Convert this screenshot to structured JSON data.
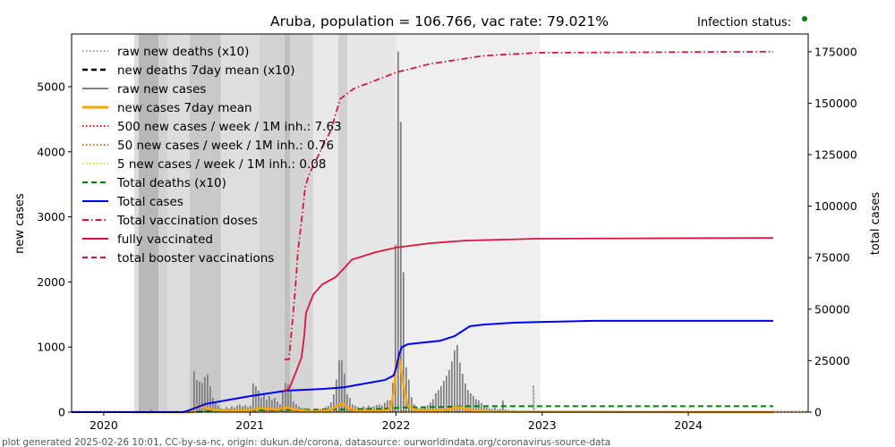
{
  "chart_data": {
    "type": "bar+line",
    "title": "Aruba, population = 106.766, vac rate: 79.021%",
    "infection_status_label": "Infection status:",
    "infection_status_color": "#008000",
    "footer": "plot generated 2025-02-26 10:01, CC-by-sa-nc, origin: dukun.de/corona, datasource: ourworldindata.org/coronavirus-source-data",
    "xlabel": "",
    "ylabel": "new cases",
    "ylabel_right": "total cases",
    "xlim": [
      2019.78,
      2024.82
    ],
    "ylim": [
      0,
      5810
    ],
    "ylim_right": [
      0,
      183600
    ],
    "x_ticks": [
      2020,
      2021,
      2022,
      2023,
      2024
    ],
    "x_tick_labels": [
      "2020",
      "2021",
      "2022",
      "2023",
      "2024"
    ],
    "y_ticks": [
      0,
      1000,
      2000,
      3000,
      4000,
      5000
    ],
    "y_tick_labels": [
      "0",
      "1000",
      "2000",
      "3000",
      "4000",
      "5000"
    ],
    "y_right_ticks": [
      0,
      25000,
      50000,
      75000,
      100000,
      125000,
      150000,
      175000
    ],
    "y_right_tick_labels": [
      "0",
      "25000",
      "50000",
      "75000",
      "100000",
      "125000",
      "150000",
      "175000"
    ],
    "legend_position": "top-left",
    "legend": [
      {
        "label": "raw new deaths (x10)",
        "color": "#808080",
        "style": "dotted",
        "width": 1.5
      },
      {
        "label": "new deaths 7day mean (x10)",
        "color": "#000000",
        "style": "dashed",
        "width": 2.5
      },
      {
        "label": "raw new cases",
        "color": "#808080",
        "style": "solid",
        "width": 2
      },
      {
        "label": "new cases 7day mean",
        "color": "#ffa500",
        "style": "solid",
        "width": 3
      },
      {
        "label": "500 new cases / week / 1M inh.: 7.63",
        "color": "#ff0000",
        "style": "dotted",
        "width": 2
      },
      {
        "label": "50 new cases / week / 1M inh.: 0.76",
        "color": "#e07020",
        "style": "dotted",
        "width": 2
      },
      {
        "label": "5 new cases / week / 1M inh.: 0.08",
        "color": "#ffd700",
        "style": "dotted",
        "width": 2
      },
      {
        "label": "Total deaths (x10)",
        "color": "#008000",
        "style": "dashed",
        "width": 2
      },
      {
        "label": "Total cases",
        "color": "#0000ff",
        "style": "solid",
        "width": 2
      },
      {
        "label": "Total vaccination doses",
        "color": "#dc143c",
        "style": "dashdot",
        "width": 2
      },
      {
        "label": "fully vaccinated",
        "color": "#dc143c",
        "style": "solid",
        "width": 2
      },
      {
        "label": "total booster vaccinations",
        "color": "#dc143c",
        "style": "dashed",
        "width": 2
      }
    ],
    "background_bands": [
      [
        2020.208,
        2020.239,
        "#dcdcdc"
      ],
      [
        2020.239,
        2020.374,
        "#b8b8b8"
      ],
      [
        2020.374,
        2020.435,
        "#d2d2d2"
      ],
      [
        2020.435,
        2020.588,
        "#dcdcdc"
      ],
      [
        2020.588,
        2020.802,
        "#c8c8c8"
      ],
      [
        2020.802,
        2021.066,
        "#dedede"
      ],
      [
        2021.066,
        2021.237,
        "#d2d2d2"
      ],
      [
        2021.237,
        2021.274,
        "#c0c0c0"
      ],
      [
        2021.274,
        2021.433,
        "#d4d4d4"
      ],
      [
        2021.433,
        2021.604,
        "#e8e8e8"
      ],
      [
        2021.604,
        2021.666,
        "#d0d0d0"
      ],
      [
        2021.666,
        2022.002,
        "#e6e6e6"
      ],
      [
        2022.002,
        2022.988,
        "#efefef"
      ]
    ],
    "raw_new_cases": {
      "start_year": 2020.214,
      "step_years": 0.01837,
      "values": [
        0,
        10,
        30,
        20,
        10,
        5,
        40,
        20,
        10,
        5,
        10,
        0,
        5,
        10,
        5,
        0,
        10,
        5,
        0,
        10,
        5,
        20,
        630,
        490,
        470,
        450,
        540,
        580,
        400,
        220,
        140,
        100,
        60,
        50,
        80,
        60,
        90,
        70,
        100,
        120,
        90,
        110,
        80,
        100,
        440,
        400,
        330,
        220,
        290,
        190,
        250,
        190,
        220,
        165,
        120,
        330,
        450,
        430,
        330,
        165,
        120,
        90,
        70,
        60,
        50,
        40,
        30,
        30,
        40,
        50,
        60,
        80,
        100,
        150,
        275,
        500,
        800,
        800,
        590,
        275,
        220,
        120,
        100,
        80,
        60,
        90,
        70,
        100,
        80,
        90,
        110,
        120,
        100,
        140,
        180,
        180,
        450,
        2570,
        5540,
        4460,
        2150,
        690,
        500,
        230,
        120,
        80,
        60,
        70,
        90,
        110,
        150,
        200,
        290,
        340,
        400,
        480,
        560,
        650,
        780,
        950,
        1030,
        760,
        590,
        440,
        340,
        290,
        250,
        200,
        180,
        140,
        90,
        70,
        60,
        50,
        70,
        40,
        50,
        180,
        40,
        30,
        20,
        30,
        20,
        20,
        10,
        10,
        10,
        10,
        5,
        5
      ]
    },
    "new_cases_7day_mean": [
      [
        2020.2,
        0
      ],
      [
        2020.6,
        0
      ],
      [
        2020.637,
        100
      ],
      [
        2020.674,
        80
      ],
      [
        2020.71,
        60
      ],
      [
        2020.759,
        30
      ],
      [
        2020.882,
        20
      ],
      [
        2021.004,
        30
      ],
      [
        2021.066,
        60
      ],
      [
        2021.188,
        40
      ],
      [
        2021.249,
        70
      ],
      [
        2021.311,
        40
      ],
      [
        2021.433,
        10
      ],
      [
        2021.555,
        30
      ],
      [
        2021.598,
        100
      ],
      [
        2021.635,
        130
      ],
      [
        2021.678,
        60
      ],
      [
        2021.739,
        20
      ],
      [
        2021.923,
        20
      ],
      [
        2021.96,
        50
      ],
      [
        2021.984,
        300
      ],
      [
        2022.003,
        750
      ],
      [
        2022.021,
        830
      ],
      [
        2022.045,
        500
      ],
      [
        2022.064,
        250
      ],
      [
        2022.082,
        90
      ],
      [
        2022.137,
        30
      ],
      [
        2022.229,
        20
      ],
      [
        2022.352,
        40
      ],
      [
        2022.413,
        70
      ],
      [
        2022.443,
        75
      ],
      [
        2022.474,
        50
      ],
      [
        2022.535,
        20
      ],
      [
        2022.719,
        10
      ],
      [
        2022.964,
        5
      ],
      [
        2024.581,
        0
      ]
    ],
    "raw_new_deaths_x10": [
      [
        2022.94,
        0
      ],
      [
        2022.94,
        410
      ],
      [
        2022.945,
        0
      ]
    ],
    "total_deaths_x10": [
      [
        2019.78,
        0
      ],
      [
        2020.6,
        0
      ],
      [
        2020.8,
        20
      ],
      [
        2021.0,
        30
      ],
      [
        2021.5,
        40
      ],
      [
        2021.9,
        50
      ],
      [
        2022.05,
        70
      ],
      [
        2022.3,
        80
      ],
      [
        2022.5,
        90
      ],
      [
        2024.581,
        90
      ]
    ],
    "thresholds": [
      7.63,
      0.76,
      0.08
    ],
    "total_cases": [
      [
        2019.78,
        0
      ],
      [
        2020.545,
        0
      ],
      [
        2020.588,
        1000
      ],
      [
        2020.698,
        4000
      ],
      [
        2021.004,
        7800
      ],
      [
        2021.249,
        10400
      ],
      [
        2021.506,
        11300
      ],
      [
        2021.647,
        12100
      ],
      [
        2021.923,
        15600
      ],
      [
        2021.984,
        17800
      ],
      [
        2022.003,
        22000
      ],
      [
        2022.021,
        28000
      ],
      [
        2022.039,
        31500
      ],
      [
        2022.082,
        33000
      ],
      [
        2022.303,
        34700
      ],
      [
        2022.401,
        36900
      ],
      [
        2022.505,
        41700
      ],
      [
        2022.597,
        42500
      ],
      [
        2022.799,
        43400
      ],
      [
        2023.0,
        43800
      ],
      [
        2023.344,
        44300
      ],
      [
        2024.581,
        44300
      ]
    ],
    "total_vaccination_doses": [
      [
        2021.237,
        25600
      ],
      [
        2021.268,
        25600
      ],
      [
        2021.286,
        40000
      ],
      [
        2021.311,
        60000
      ],
      [
        2021.329,
        78000
      ],
      [
        2021.359,
        96000
      ],
      [
        2021.378,
        109000
      ],
      [
        2021.402,
        115000
      ],
      [
        2021.464,
        124000
      ],
      [
        2021.555,
        137000
      ],
      [
        2021.617,
        152000
      ],
      [
        2021.709,
        157000
      ],
      [
        2022.003,
        165000
      ],
      [
        2022.229,
        169000
      ],
      [
        2022.597,
        173000
      ],
      [
        2022.964,
        174500
      ],
      [
        2024.581,
        175000
      ]
    ],
    "fully_vaccinated": [
      [
        2021.237,
        10400
      ],
      [
        2021.268,
        11300
      ],
      [
        2021.311,
        18700
      ],
      [
        2021.353,
        26500
      ],
      [
        2021.372,
        37300
      ],
      [
        2021.384,
        48200
      ],
      [
        2021.433,
        57000
      ],
      [
        2021.494,
        62000
      ],
      [
        2021.586,
        65500
      ],
      [
        2021.647,
        70000
      ],
      [
        2021.696,
        74000
      ],
      [
        2021.862,
        77700
      ],
      [
        2022.003,
        79900
      ],
      [
        2022.229,
        82000
      ],
      [
        2022.474,
        83300
      ],
      [
        2022.964,
        84200
      ],
      [
        2024.581,
        84600
      ]
    ]
  }
}
